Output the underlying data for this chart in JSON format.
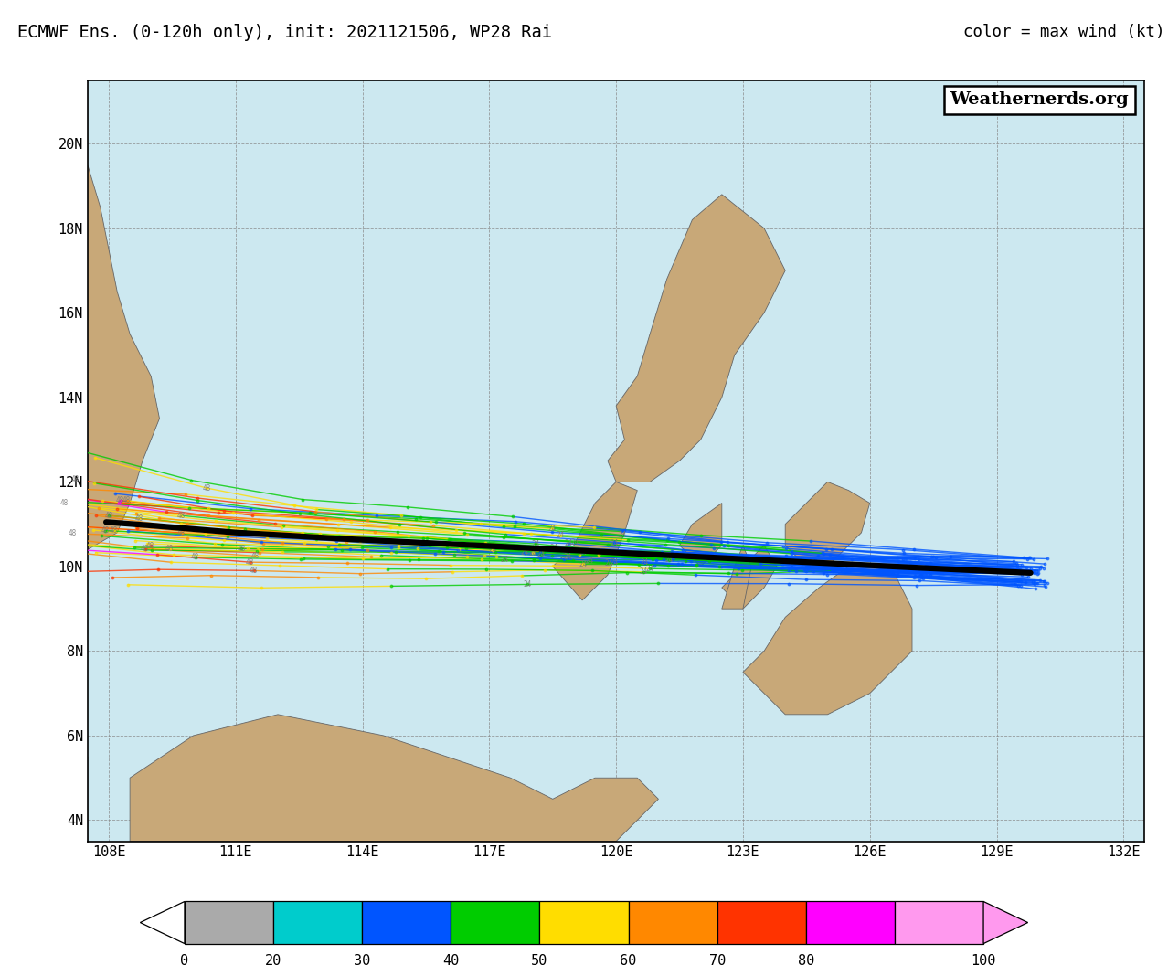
{
  "title": "ECMWF Ens. (0-120h only), init: 2021121506, WP28 Rai",
  "color_label": "color = max wind (kt)",
  "watermark": "Weathernerds.org",
  "lon_min": 107.5,
  "lon_max": 132.5,
  "lat_min": 3.5,
  "lat_max": 21.5,
  "lon_ticks": [
    108,
    111,
    114,
    117,
    120,
    123,
    126,
    129,
    132
  ],
  "lat_ticks": [
    4,
    6,
    8,
    10,
    12,
    14,
    16,
    18,
    20
  ],
  "bg_color": "#cce8f0",
  "land_color": "#c8a878",
  "border_color": "#666666",
  "colorbar_bounds": [
    0,
    20,
    30,
    40,
    50,
    60,
    70,
    80,
    100,
    130
  ],
  "colorbar_labels": [
    "0",
    "20",
    "30",
    "40",
    "50",
    "60",
    "70",
    "80",
    "100"
  ],
  "colorbar_colors": [
    "#aaaaaa",
    "#00cccc",
    "#0055ff",
    "#00cc00",
    "#ffdd00",
    "#ff8800",
    "#ff3300",
    "#ff00ff",
    "#ff99ee"
  ],
  "init_lon": 129.8,
  "init_lat": 9.75,
  "seed": 42
}
